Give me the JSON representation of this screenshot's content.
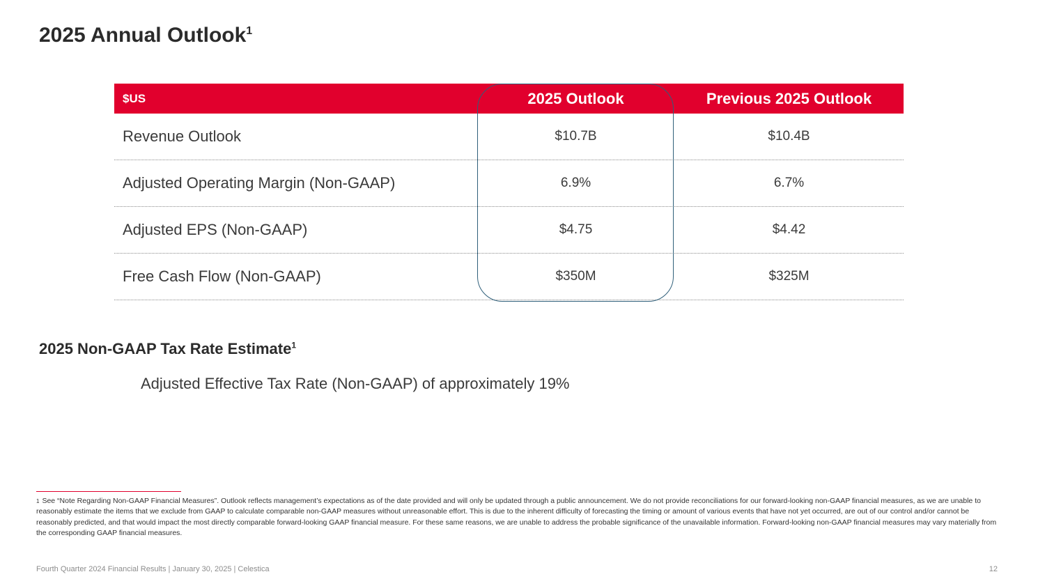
{
  "title": {
    "text": "2025 Annual Outlook",
    "sup": "1"
  },
  "table": {
    "header": {
      "label": "$US",
      "col1": "2025 Outlook",
      "col2": "Previous 2025 Outlook"
    },
    "rows": [
      {
        "label": "Revenue Outlook",
        "col1": "$10.7B",
        "col2": "$10.4B"
      },
      {
        "label": "Adjusted Operating Margin (Non-GAAP)",
        "col1": "6.9%",
        "col2": "6.7%"
      },
      {
        "label": "Adjusted EPS (Non-GAAP)",
        "col1": "$4.75",
        "col2": "$4.42"
      },
      {
        "label": "Free Cash Flow (Non-GAAP)",
        "col1": "$350M",
        "col2": "$325M"
      }
    ]
  },
  "tax": {
    "heading": "2025 Non-GAAP Tax Rate Estimate",
    "sup": "1",
    "text": "Adjusted Effective Tax Rate (Non-GAAP) of approximately 19%"
  },
  "footnote": {
    "marker": "1",
    "text": "See “Note Regarding Non-GAAP Financial Measures”. Outlook reflects management’s expectations as of the date provided and will only be updated through a public announcement. We do not provide reconciliations for our forward-looking non-GAAP financial measures, as we are unable to reasonably estimate the items that we exclude from GAAP to calculate comparable non-GAAP measures without unreasonable effort. This is due to the inherent difficulty of forecasting the timing or amount of various events that have not yet occurred, are out of our control and/or cannot be reasonably predicted, and that would impact the most directly comparable forward-looking GAAP financial measure. For these same reasons, we are unable to address the probable significance of the unavailable information. Forward-looking non-GAAP financial measures may vary materially from the corresponding GAAP financial measures."
  },
  "footer": {
    "text": "Fourth Quarter 2024 Financial Results | January 30, 2025 | Celestica",
    "page": "12"
  },
  "colors": {
    "accent": "#e1002d",
    "highlight_border": "#2f5f7a"
  }
}
